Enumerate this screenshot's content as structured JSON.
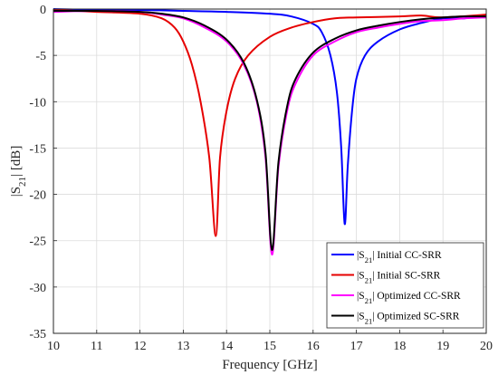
{
  "chart_data": {
    "type": "line",
    "title": "",
    "xlabel": "Frequency [GHz]",
    "ylabel_main": "|S",
    "ylabel_sub": "21",
    "ylabel_tail": "| [dB]",
    "xlim": [
      10,
      20
    ],
    "ylim": [
      -35,
      0
    ],
    "xticks": [
      10,
      11,
      12,
      13,
      14,
      15,
      16,
      17,
      18,
      19,
      20
    ],
    "yticks": [
      0,
      -5,
      -10,
      -15,
      -20,
      -25,
      -30,
      -35
    ],
    "grid": true,
    "legend_position": "bottom-right",
    "series": [
      {
        "name_main": "|S",
        "name_sub": "21",
        "name_tail": "| Initial CC-SRR",
        "color": "#0000ff",
        "points": [
          [
            10,
            0.0
          ],
          [
            11,
            -0.1
          ],
          [
            12,
            -0.1
          ],
          [
            13,
            -0.2
          ],
          [
            14,
            -0.3
          ],
          [
            15,
            -0.5
          ],
          [
            15.5,
            -0.8
          ],
          [
            16,
            -1.6
          ],
          [
            16.2,
            -2.5
          ],
          [
            16.4,
            -5.0
          ],
          [
            16.55,
            -9.0
          ],
          [
            16.65,
            -15.0
          ],
          [
            16.73,
            -23.2
          ],
          [
            16.8,
            -17.0
          ],
          [
            16.9,
            -11.0
          ],
          [
            17.0,
            -7.5
          ],
          [
            17.2,
            -5.0
          ],
          [
            17.5,
            -3.5
          ],
          [
            18,
            -2.2
          ],
          [
            18.5,
            -1.5
          ],
          [
            19,
            -1.0
          ],
          [
            19.5,
            -1.0
          ],
          [
            20,
            -0.6
          ]
        ]
      },
      {
        "name_main": "|S",
        "name_sub": "21",
        "name_tail": "| Initial SC-SRR",
        "color": "#e60000",
        "points": [
          [
            10,
            -0.1
          ],
          [
            11,
            -0.3
          ],
          [
            12,
            -0.5
          ],
          [
            12.5,
            -1.0
          ],
          [
            12.8,
            -2.0
          ],
          [
            13.0,
            -3.5
          ],
          [
            13.2,
            -6.0
          ],
          [
            13.4,
            -10.0
          ],
          [
            13.6,
            -16.0
          ],
          [
            13.75,
            -24.5
          ],
          [
            13.85,
            -16.0
          ],
          [
            14.0,
            -11.0
          ],
          [
            14.2,
            -7.5
          ],
          [
            14.5,
            -5.0
          ],
          [
            15,
            -3.0
          ],
          [
            15.5,
            -2.0
          ],
          [
            16,
            -1.4
          ],
          [
            16.5,
            -1.0
          ],
          [
            17,
            -0.9
          ],
          [
            18,
            -0.8
          ],
          [
            18.5,
            -0.7
          ],
          [
            19,
            -0.9
          ],
          [
            20,
            -0.6
          ]
        ]
      },
      {
        "name_main": "|S",
        "name_sub": "21",
        "name_tail": "| Optimized CC-SRR",
        "color": "#ff00ff",
        "points": [
          [
            10,
            -0.3
          ],
          [
            11,
            -0.2
          ],
          [
            12,
            -0.3
          ],
          [
            12.5,
            -0.6
          ],
          [
            13,
            -1.0
          ],
          [
            13.5,
            -2.0
          ],
          [
            14,
            -3.5
          ],
          [
            14.4,
            -6.0
          ],
          [
            14.7,
            -10.0
          ],
          [
            14.9,
            -16.0
          ],
          [
            15.05,
            -26.5
          ],
          [
            15.2,
            -17.0
          ],
          [
            15.4,
            -11.0
          ],
          [
            15.6,
            -8.0
          ],
          [
            16,
            -5.0
          ],
          [
            16.5,
            -3.5
          ],
          [
            17,
            -2.5
          ],
          [
            17.5,
            -2.0
          ],
          [
            18,
            -1.6
          ],
          [
            18.5,
            -1.3
          ],
          [
            19,
            -1.2
          ],
          [
            19.5,
            -1.0
          ],
          [
            20,
            -0.9
          ]
        ]
      },
      {
        "name_main": "|S",
        "name_sub": "21",
        "name_tail": "| Optimized SC-SRR",
        "color": "#000000",
        "points": [
          [
            10,
            -0.2
          ],
          [
            11,
            -0.2
          ],
          [
            12,
            -0.3
          ],
          [
            12.5,
            -0.5
          ],
          [
            13,
            -0.9
          ],
          [
            13.5,
            -1.8
          ],
          [
            14,
            -3.3
          ],
          [
            14.4,
            -5.8
          ],
          [
            14.7,
            -9.8
          ],
          [
            14.9,
            -15.5
          ],
          [
            15.05,
            -26.0
          ],
          [
            15.2,
            -16.5
          ],
          [
            15.4,
            -10.5
          ],
          [
            15.6,
            -7.5
          ],
          [
            16,
            -4.7
          ],
          [
            16.5,
            -3.2
          ],
          [
            17,
            -2.3
          ],
          [
            17.5,
            -1.8
          ],
          [
            18,
            -1.4
          ],
          [
            18.5,
            -1.1
          ],
          [
            19,
            -0.9
          ],
          [
            19.5,
            -0.8
          ],
          [
            20,
            -0.8
          ]
        ]
      }
    ]
  }
}
